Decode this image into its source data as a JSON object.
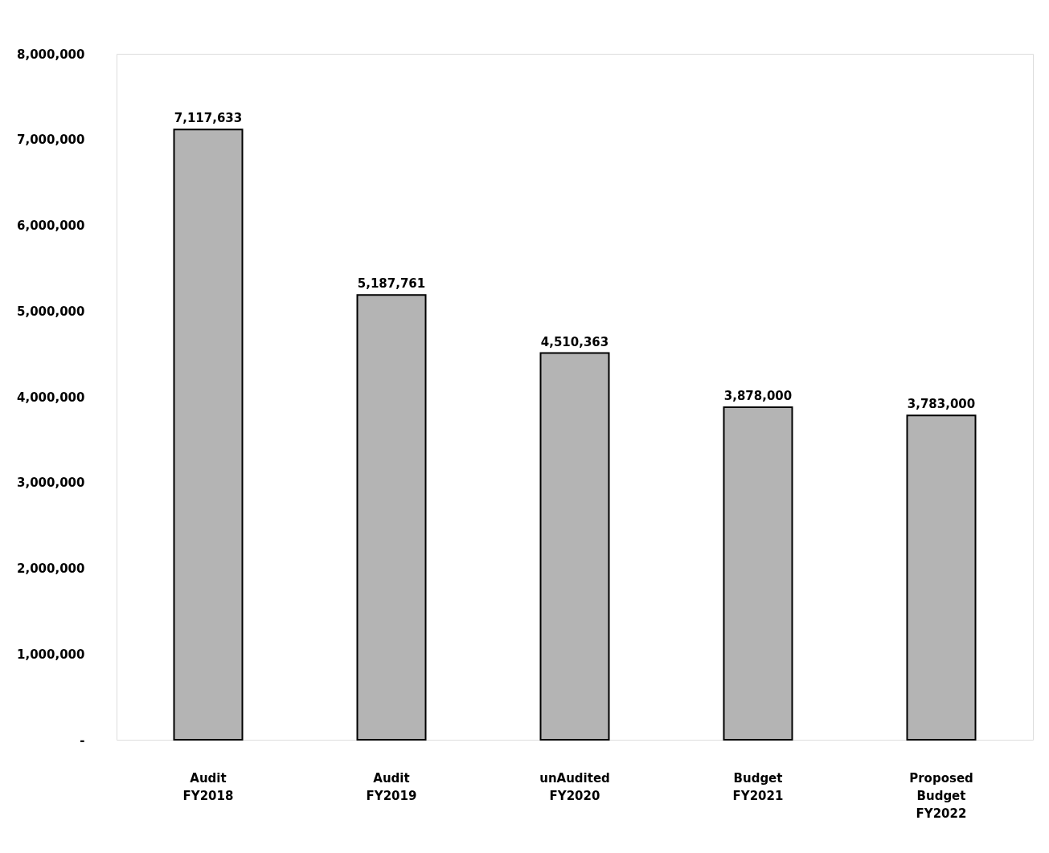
{
  "chart_data": {
    "type": "bar",
    "categories": [
      "Audit\n\nFY2018",
      "Audit\n\nFY2019",
      "unAudited\n\nFY2020",
      "Budget\n\nFY2021",
      "Proposed\nBudget\n\nFY2022"
    ],
    "values": [
      7117633,
      5187761,
      4510363,
      3878000,
      3783000
    ],
    "value_labels": [
      "7,117,633",
      "5,187,761",
      "4,510,363",
      "3,878,000",
      "3,783,000"
    ],
    "color": "#b4b4b4",
    "ylim": [
      0,
      8000000
    ],
    "yticks": [
      {
        "value": 0,
        "label": "-"
      },
      {
        "value": 1000000,
        "label": "1,000,000"
      },
      {
        "value": 2000000,
        "label": "2,000,000"
      },
      {
        "value": 3000000,
        "label": "3,000,000"
      },
      {
        "value": 4000000,
        "label": "4,000,000"
      },
      {
        "value": 5000000,
        "label": "5,000,000"
      },
      {
        "value": 6000000,
        "label": "6,000,000"
      },
      {
        "value": 7000000,
        "label": "7,000,000"
      },
      {
        "value": 8000000,
        "label": "8,000,000"
      }
    ],
    "grid": false
  }
}
